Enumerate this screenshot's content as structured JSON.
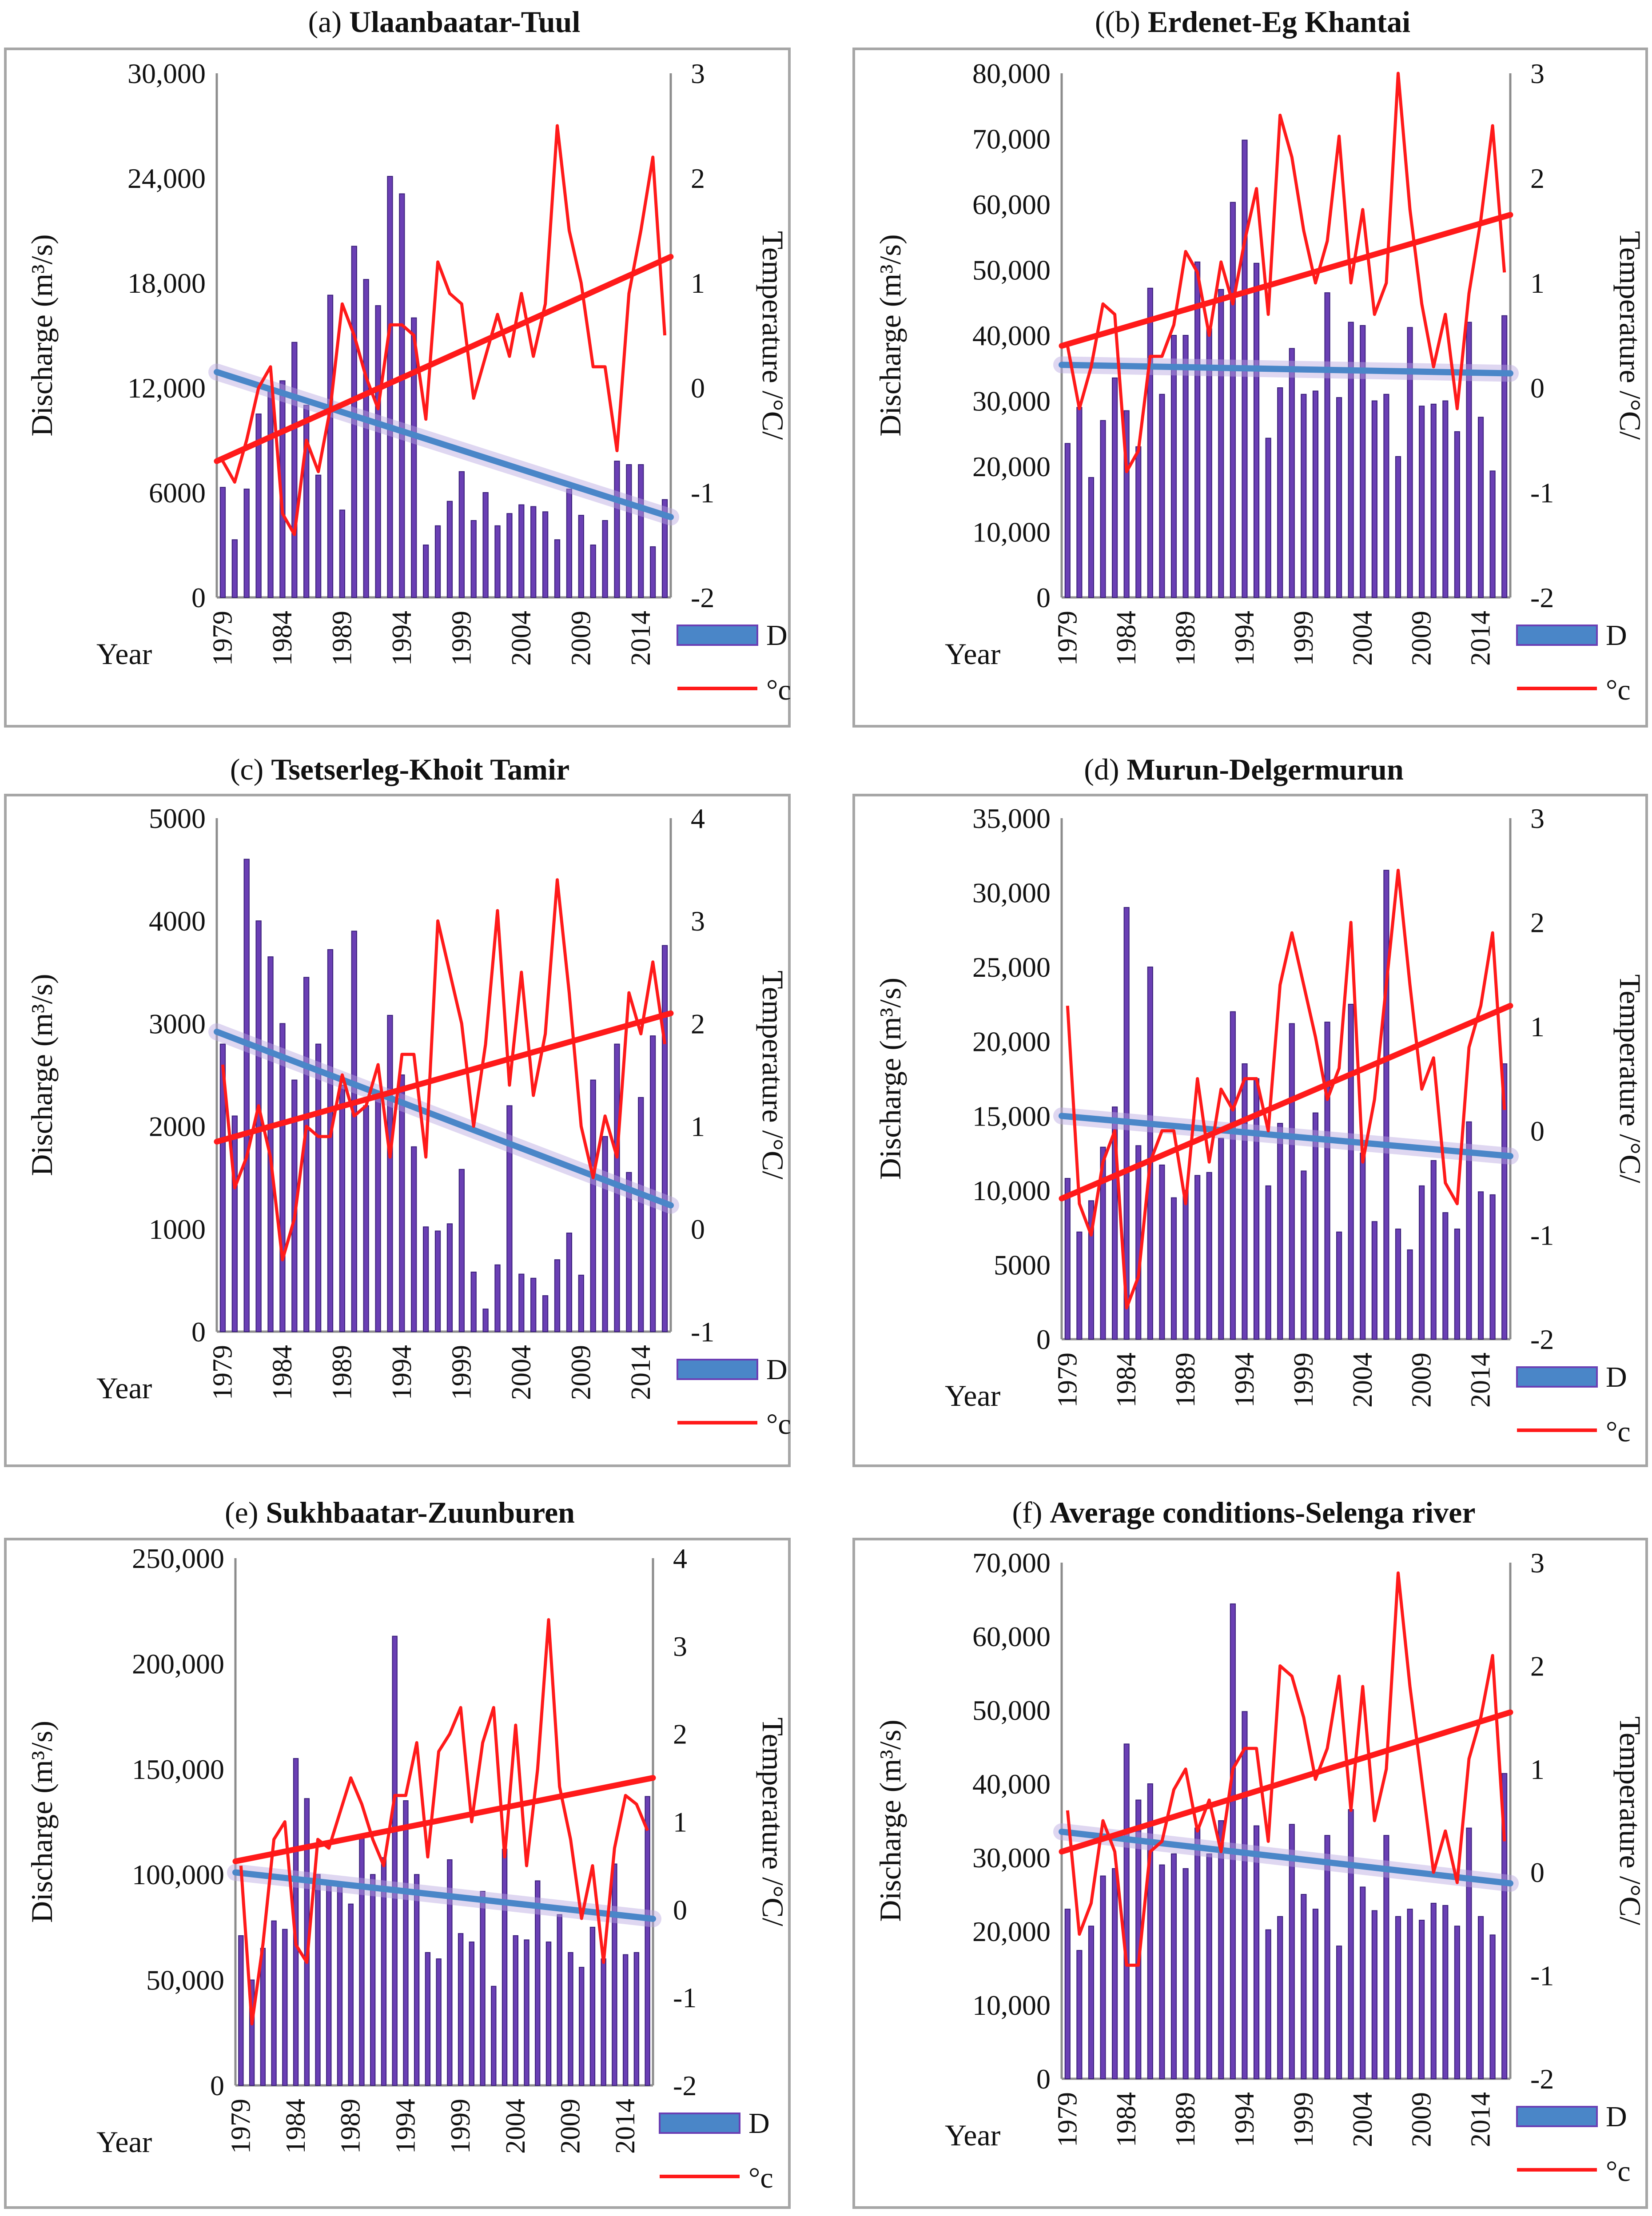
{
  "figure": {
    "colors": {
      "bar_fill": "#6a3fb4",
      "bar_stroke": "#3a1f7a",
      "discharge_trend": "#4a86c8",
      "temperature_line": "#ff1a1a",
      "temperature_trend": "#ff1a1a"
    }
  },
  "chart_data": [
    {
      "type": "bar",
      "label": "(a)",
      "title": "Ulaanbaatar-Tuul",
      "xlabel": "Year",
      "ylabel": "Discharge (m³/s)",
      "y2label": "Temperature /°C/",
      "x_ticks": [
        "1979",
        "1984",
        "1989",
        "1994",
        "1999",
        "2004",
        "2009",
        "2014"
      ],
      "y_ticks": [
        "0",
        "6000",
        "12,000",
        "18,000",
        "24,000",
        "30,000"
      ],
      "y2_ticks": [
        "-2",
        "-1",
        "0",
        "1",
        "2",
        "3"
      ],
      "ylim": [
        0,
        30000
      ],
      "y2lim": [
        -2,
        3
      ],
      "legend": [
        "D",
        "°c"
      ],
      "years": [
        1979,
        1980,
        1981,
        1982,
        1983,
        1984,
        1985,
        1986,
        1987,
        1988,
        1989,
        1990,
        1991,
        1992,
        1993,
        1994,
        1995,
        1996,
        1997,
        1998,
        1999,
        2000,
        2001,
        2002,
        2003,
        2004,
        2005,
        2006,
        2007,
        2008,
        2009,
        2010,
        2011,
        2012,
        2013,
        2014,
        2015,
        2016
      ],
      "series": [
        {
          "name": "D",
          "kind": "bar",
          "axis": "left",
          "values": [
            6300,
            3300,
            6200,
            10500,
            12000,
            12400,
            14600,
            11000,
            7000,
            17300,
            5000,
            20100,
            18200,
            16700,
            24100,
            23100,
            16000,
            3000,
            4100,
            5500,
            7200,
            4400,
            6000,
            4100,
            4800,
            5300,
            5200,
            4900,
            3300,
            6200,
            4700,
            3000,
            4400,
            7800,
            7600,
            7600,
            2900,
            5600
          ]
        },
        {
          "name": "°c",
          "kind": "line",
          "axis": "right",
          "values": [
            -0.7,
            -0.9,
            -0.5,
            0,
            0.2,
            -1.2,
            -1.4,
            -0.5,
            -0.8,
            -0.2,
            0.8,
            0.5,
            0.1,
            -0.2,
            0.6,
            0.6,
            0.5,
            -0.3,
            1.2,
            0.9,
            0.8,
            -0.1,
            0.3,
            0.7,
            0.3,
            0.9,
            0.3,
            0.8,
            2.5,
            1.5,
            1.0,
            0.2,
            0.2,
            -0.6,
            0.9,
            1.5,
            2.2,
            0.5
          ]
        }
      ],
      "trends": [
        {
          "name": "D trend",
          "axis": "left",
          "start": 12900,
          "end": 4600
        },
        {
          "name": "°c trend",
          "axis": "right",
          "start": -0.7,
          "end": 1.25
        }
      ]
    },
    {
      "type": "bar",
      "label": "((b)",
      "title": "Erdenet-Eg Khantai",
      "xlabel": "Year",
      "ylabel": "Discharge (m³/s)",
      "y2label": "Temperature /°C/",
      "x_ticks": [
        "1979",
        "1984",
        "1989",
        "1994",
        "1999",
        "2004",
        "2009",
        "2014"
      ],
      "y_ticks": [
        "0",
        "10,000",
        "20,000",
        "30,000",
        "40,000",
        "50,000",
        "60,000",
        "70,000",
        "80,000"
      ],
      "y2_ticks": [
        "-2",
        "-1",
        "0",
        "1",
        "2",
        "3"
      ],
      "ylim": [
        0,
        80000
      ],
      "y2lim": [
        -2,
        3
      ],
      "legend": [
        "D",
        "°c"
      ],
      "years": [
        1979,
        1980,
        1981,
        1982,
        1983,
        1984,
        1985,
        1986,
        1987,
        1988,
        1989,
        1990,
        1991,
        1992,
        1993,
        1994,
        1995,
        1996,
        1997,
        1998,
        1999,
        2000,
        2001,
        2002,
        2003,
        2004,
        2005,
        2006,
        2007,
        2008,
        2009,
        2010,
        2011,
        2012,
        2013,
        2014,
        2015,
        2016
      ],
      "series": [
        {
          "name": "D",
          "kind": "bar",
          "axis": "left",
          "values": [
            23500,
            29000,
            18300,
            27000,
            33500,
            28500,
            23000,
            47200,
            31000,
            40000,
            40000,
            51200,
            41000,
            47000,
            60300,
            69800,
            51000,
            24300,
            32000,
            38000,
            31000,
            31500,
            46500,
            30500,
            42000,
            41500,
            30000,
            31000,
            21500,
            41200,
            29200,
            29500,
            30000,
            25300,
            42000,
            27500,
            19300,
            43000
          ]
        },
        {
          "name": "°c",
          "kind": "line",
          "axis": "right",
          "values": [
            0.4,
            -0.2,
            0.2,
            0.8,
            0.7,
            -0.8,
            -0.6,
            0.3,
            0.3,
            0.6,
            1.3,
            1.1,
            0.5,
            1.2,
            0.8,
            1.4,
            1.9,
            0.7,
            2.6,
            2.2,
            1.5,
            1.0,
            1.4,
            2.4,
            1.0,
            1.7,
            0.7,
            1.0,
            3.0,
            1.7,
            0.8,
            0.2,
            0.7,
            -0.2,
            0.9,
            1.6,
            2.5,
            1.1
          ]
        }
      ],
      "trends": [
        {
          "name": "D trend",
          "axis": "left",
          "start": 35500,
          "end": 34200
        },
        {
          "name": "°c trend",
          "axis": "right",
          "start": 0.4,
          "end": 1.65
        }
      ]
    },
    {
      "type": "bar",
      "label": "(c)",
      "title": "Tsetserleg-Khoit Tamir",
      "xlabel": "Year",
      "ylabel": "Discharge (m³/s)",
      "y2label": "Temperature /°C/",
      "x_ticks": [
        "1979",
        "1984",
        "1989",
        "1994",
        "1999",
        "2004",
        "2009",
        "2014"
      ],
      "y_ticks": [
        "0",
        "1000",
        "2000",
        "3000",
        "4000",
        "5000"
      ],
      "y2_ticks": [
        "-1",
        "0",
        "1",
        "2",
        "3",
        "4"
      ],
      "ylim": [
        0,
        5000
      ],
      "y2lim": [
        -1,
        4
      ],
      "legend": [
        "D",
        "°c"
      ],
      "years": [
        1979,
        1980,
        1981,
        1982,
        1983,
        1984,
        1985,
        1986,
        1987,
        1988,
        1989,
        1990,
        1991,
        1992,
        1993,
        1994,
        1995,
        1996,
        1997,
        1998,
        1999,
        2000,
        2001,
        2002,
        2003,
        2004,
        2005,
        2006,
        2007,
        2008,
        2009,
        2010,
        2011,
        2012,
        2013,
        2014,
        2015,
        2016
      ],
      "series": [
        {
          "name": "D",
          "kind": "bar",
          "axis": "left",
          "values": [
            2800,
            2100,
            4600,
            4000,
            3650,
            3000,
            2450,
            3450,
            2800,
            3720,
            2400,
            3900,
            2200,
            2300,
            3080,
            2500,
            1800,
            1020,
            980,
            1050,
            1580,
            580,
            220,
            650,
            2200,
            560,
            520,
            350,
            700,
            960,
            550,
            2450,
            1900,
            2800,
            1550,
            2280,
            2880,
            3760
          ]
        },
        {
          "name": "°c",
          "kind": "line",
          "axis": "right",
          "values": [
            1.6,
            0.4,
            0.7,
            1.2,
            0.7,
            -0.3,
            0.1,
            1.0,
            0.9,
            0.9,
            1.5,
            1.1,
            1.2,
            1.6,
            0.7,
            1.7,
            1.7,
            0.7,
            3.0,
            2.5,
            2.0,
            1.0,
            1.8,
            3.1,
            1.4,
            2.5,
            1.3,
            1.9,
            3.4,
            2.3,
            1.0,
            0.5,
            1.1,
            0.7,
            2.3,
            1.9,
            2.6,
            1.8
          ]
        }
      ],
      "trends": [
        {
          "name": "D trend",
          "axis": "left",
          "start": 2920,
          "end": 1230
        },
        {
          "name": "°c trend",
          "axis": "right",
          "start": 0.85,
          "end": 2.1
        }
      ]
    },
    {
      "type": "bar",
      "label": "(d)",
      "title": "Murun-Delgermurun",
      "xlabel": "Year",
      "ylabel": "Discharge (m³/s)",
      "y2label": "Temperature /°C/",
      "x_ticks": [
        "1979",
        "1984",
        "1989",
        "1994",
        "1999",
        "2004",
        "2009",
        "2014"
      ],
      "y_ticks": [
        "0",
        "5000",
        "10,000",
        "15,000",
        "20,000",
        "25,000",
        "30,000",
        "35,000"
      ],
      "y2_ticks": [
        "-2",
        "-1",
        "0",
        "1",
        "2",
        "3"
      ],
      "ylim": [
        0,
        35000
      ],
      "y2lim": [
        -2,
        3
      ],
      "legend": [
        "D",
        "°c"
      ],
      "years": [
        1979,
        1980,
        1981,
        1982,
        1983,
        1984,
        1985,
        1986,
        1987,
        1988,
        1989,
        1990,
        1991,
        1992,
        1993,
        1994,
        1995,
        1996,
        1997,
        1998,
        1999,
        2000,
        2001,
        2002,
        2003,
        2004,
        2005,
        2006,
        2007,
        2008,
        2009,
        2010,
        2011,
        2012,
        2013,
        2014,
        2015,
        2016
      ],
      "series": [
        {
          "name": "D",
          "kind": "bar",
          "axis": "left",
          "values": [
            10800,
            7200,
            9300,
            12900,
            15600,
            29000,
            13000,
            25000,
            11700,
            9500,
            10000,
            11000,
            11200,
            13500,
            22000,
            18500,
            17500,
            10300,
            14500,
            21200,
            11300,
            15200,
            21300,
            7200,
            22500,
            12500,
            7900,
            31500,
            7400,
            6000,
            10300,
            12000,
            8500,
            7400,
            14600,
            9900,
            9700,
            18500
          ]
        },
        {
          "name": "°c",
          "kind": "line",
          "axis": "right",
          "values": [
            1.2,
            -0.7,
            -1.0,
            -0.3,
            0,
            -1.7,
            -1.4,
            -0.3,
            0,
            0,
            -0.7,
            0.5,
            -0.3,
            0.4,
            0.2,
            0.5,
            0.5,
            0,
            1.4,
            1.9,
            1.4,
            0.9,
            0.3,
            0.6,
            2.0,
            -0.3,
            0.3,
            1.4,
            2.5,
            1.4,
            0.4,
            0.7,
            -0.5,
            -0.7,
            0.8,
            1.2,
            1.9,
            0.2
          ]
        }
      ],
      "trends": [
        {
          "name": "D trend",
          "axis": "left",
          "start": 15000,
          "end": 12300
        },
        {
          "name": "°c trend",
          "axis": "right",
          "start": -0.65,
          "end": 1.2
        }
      ]
    },
    {
      "type": "bar",
      "label": "(e)",
      "title": "Sukhbaatar-Zuunburen",
      "xlabel": "Year",
      "ylabel": "Discharge (m³/s)",
      "y2label": "Temperature /°C/",
      "x_ticks": [
        "1979",
        "1984",
        "1989",
        "1994",
        "1999",
        "2004",
        "2009",
        "2014"
      ],
      "y_ticks": [
        "0",
        "50,000",
        "100,000",
        "150,000",
        "200,000",
        "250,000"
      ],
      "y2_ticks": [
        "-2",
        "-1",
        "0",
        "1",
        "2",
        "3",
        "4"
      ],
      "ylim": [
        0,
        250000
      ],
      "y2lim": [
        -2,
        4
      ],
      "legend": [
        "D",
        "°c"
      ],
      "years": [
        1979,
        1980,
        1981,
        1982,
        1983,
        1984,
        1985,
        1986,
        1987,
        1988,
        1989,
        1990,
        1991,
        1992,
        1993,
        1994,
        1995,
        1996,
        1997,
        1998,
        1999,
        2000,
        2001,
        2002,
        2003,
        2004,
        2005,
        2006,
        2007,
        2008,
        2009,
        2010,
        2011,
        2012,
        2013,
        2014,
        2015,
        2016
      ],
      "series": [
        {
          "name": "D",
          "kind": "bar",
          "axis": "left",
          "values": [
            71000,
            50000,
            65000,
            78000,
            74000,
            155000,
            136000,
            100000,
            95000,
            95000,
            86000,
            118000,
            100000,
            108000,
            213000,
            135000,
            100000,
            63000,
            60000,
            107000,
            72000,
            68000,
            92000,
            47000,
            112000,
            71000,
            69000,
            97000,
            68000,
            81000,
            63000,
            56000,
            75000,
            60000,
            105000,
            62000,
            63000,
            137000
          ]
        },
        {
          "name": "°c",
          "kind": "line",
          "axis": "right",
          "values": [
            0.5,
            -1.3,
            -0.4,
            0.8,
            1.0,
            -0.4,
            -0.6,
            0.8,
            0.7,
            1.1,
            1.5,
            1.2,
            0.8,
            0.5,
            1.3,
            1.3,
            1.9,
            0.6,
            1.8,
            2.0,
            2.3,
            1.0,
            1.9,
            2.3,
            0.6,
            2.1,
            0.5,
            1.6,
            3.3,
            1.4,
            0.8,
            -0.1,
            0.5,
            -0.6,
            0.7,
            1.3,
            1.2,
            0.9
          ]
        }
      ],
      "trends": [
        {
          "name": "D trend",
          "axis": "left",
          "start": 101000,
          "end": 79000
        },
        {
          "name": "°c trend",
          "axis": "right",
          "start": 0.55,
          "end": 1.5
        }
      ]
    },
    {
      "type": "bar",
      "label": "(f)",
      "title": "Average conditions-Selenga river",
      "xlabel": "Year",
      "ylabel": "Discharge (m³/s)",
      "y2label": "Temperature /°C/",
      "x_ticks": [
        "1979",
        "1984",
        "1989",
        "1994",
        "1999",
        "2004",
        "2009",
        "2014"
      ],
      "y_ticks": [
        "0",
        "10,000",
        "20,000",
        "30,000",
        "40,000",
        "50,000",
        "60,000",
        "70,000"
      ],
      "y2_ticks": [
        "-2",
        "-1",
        "0",
        "1",
        "2",
        "3"
      ],
      "ylim": [
        0,
        70000
      ],
      "y2lim": [
        -2,
        3
      ],
      "legend": [
        "D",
        "°c"
      ],
      "years": [
        1979,
        1980,
        1981,
        1982,
        1983,
        1984,
        1985,
        1986,
        1987,
        1988,
        1989,
        1990,
        1991,
        1992,
        1993,
        1994,
        1995,
        1996,
        1997,
        1998,
        1999,
        2000,
        2001,
        2002,
        2003,
        2004,
        2005,
        2006,
        2007,
        2008,
        2009,
        2010,
        2011,
        2012,
        2013,
        2014,
        2015,
        2016
      ],
      "series": [
        {
          "name": "D",
          "kind": "bar",
          "axis": "left",
          "values": [
            23000,
            17400,
            20700,
            27500,
            28500,
            45400,
            37800,
            40000,
            29000,
            30500,
            28500,
            34000,
            30500,
            35000,
            64400,
            49800,
            34300,
            20200,
            22000,
            34500,
            25000,
            23000,
            33000,
            18000,
            36500,
            26000,
            22800,
            33000,
            22000,
            23000,
            21500,
            23800,
            23500,
            20700,
            34000,
            22000,
            19500,
            41400
          ]
        },
        {
          "name": "°c",
          "kind": "line",
          "axis": "right",
          "values": [
            0.6,
            -0.6,
            -0.3,
            0.5,
            0.2,
            -0.9,
            -0.9,
            0.2,
            0.3,
            0.8,
            1.0,
            0.4,
            0.7,
            0.2,
            1.0,
            1.2,
            1.2,
            0.3,
            2.0,
            1.9,
            1.5,
            0.9,
            1.2,
            1.9,
            0.6,
            1.8,
            0.5,
            1.0,
            2.9,
            1.8,
            0.9,
            0,
            0.4,
            -0.1,
            1.1,
            1.5,
            2.1,
            0.3
          ]
        }
      ],
      "trends": [
        {
          "name": "D trend",
          "axis": "left",
          "start": 33500,
          "end": 26500
        },
        {
          "name": "°c trend",
          "axis": "right",
          "start": 0.2,
          "end": 1.55
        }
      ]
    }
  ]
}
